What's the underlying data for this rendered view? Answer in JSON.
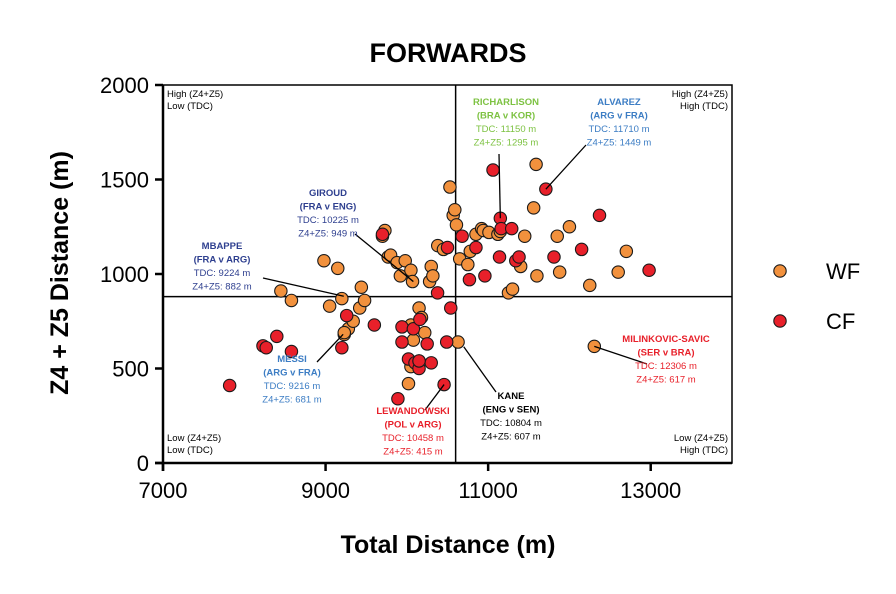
{
  "chart_data": {
    "type": "scatter",
    "title": "FORWARDS",
    "xlabel": "Total Distance (m)",
    "ylabel": "Z4 + Z5 Distance (m)",
    "xlim": [
      7000,
      14000
    ],
    "ylim": [
      0,
      2000
    ],
    "xticks": [
      7000,
      9000,
      11000,
      13000
    ],
    "yticks": [
      0,
      500,
      1000,
      1500,
      2000
    ],
    "reference_lines": {
      "x": 10600,
      "y": 880
    },
    "colors": {
      "WF": "#F2913D",
      "CF": "#E8202A"
    },
    "corner_labels": {
      "top_left": [
        "High (Z4+Z5)",
        "Low (TDC)"
      ],
      "top_right": [
        "High (Z4+Z5)",
        "High (TDC)"
      ],
      "bottom_left": [
        "Low (Z4+Z5)",
        "Low (TDC)"
      ],
      "bottom_right": [
        "Low (Z4+Z5)",
        "High (TDC)"
      ]
    },
    "legend": [
      {
        "name": "WF",
        "color": "#F2913D"
      },
      {
        "name": "CF",
        "color": "#E8202A"
      }
    ],
    "series": [
      {
        "name": "WF",
        "points": [
          [
            8450,
            910
          ],
          [
            8580,
            860
          ],
          [
            8980,
            1070
          ],
          [
            9050,
            830
          ],
          [
            9150,
            1030
          ],
          [
            9200,
            870
          ],
          [
            9280,
            710
          ],
          [
            9340,
            750
          ],
          [
            9420,
            820
          ],
          [
            9440,
            930
          ],
          [
            9480,
            860
          ],
          [
            9700,
            1200
          ],
          [
            9730,
            1230
          ],
          [
            9770,
            1090
          ],
          [
            9800,
            1100
          ],
          [
            9880,
            1060
          ],
          [
            9920,
            990
          ],
          [
            9980,
            1070
          ],
          [
            10050,
            1020
          ],
          [
            10070,
            960
          ],
          [
            10150,
            820
          ],
          [
            10180,
            770
          ],
          [
            10220,
            690
          ],
          [
            10280,
            960
          ],
          [
            10300,
            1040
          ],
          [
            10320,
            990
          ],
          [
            10380,
            1150
          ],
          [
            10450,
            1130
          ],
          [
            10530,
            1460
          ],
          [
            10570,
            1310
          ],
          [
            10590,
            1340
          ],
          [
            10610,
            1260
          ],
          [
            10650,
            1080
          ],
          [
            9230,
            680
          ],
          [
            10050,
            730
          ],
          [
            10050,
            510
          ],
          [
            10020,
            420
          ],
          [
            10080,
            650
          ],
          [
            10750,
            1050
          ],
          [
            10780,
            1120
          ],
          [
            10850,
            1210
          ],
          [
            10920,
            1240
          ],
          [
            10940,
            1230
          ],
          [
            11010,
            1220
          ],
          [
            11120,
            1210
          ],
          [
            11150,
            1225
          ],
          [
            11250,
            900
          ],
          [
            11300,
            920
          ],
          [
            11400,
            1040
          ],
          [
            11450,
            1200
          ],
          [
            11560,
            1350
          ],
          [
            11590,
            1580
          ],
          [
            11600,
            990
          ],
          [
            11850,
            1200
          ],
          [
            11880,
            1010
          ],
          [
            12000,
            1250
          ],
          [
            12250,
            940
          ],
          [
            12600,
            1010
          ],
          [
            12700,
            1120
          ],
          [
            10630,
            640
          ],
          [
            12306,
            617
          ],
          [
            9230,
            690
          ]
        ]
      },
      {
        "name": "CF",
        "points": [
          [
            7820,
            410
          ],
          [
            8230,
            620
          ],
          [
            8270,
            610
          ],
          [
            8400,
            670
          ],
          [
            8580,
            590
          ],
          [
            9200,
            610
          ],
          [
            9260,
            780
          ],
          [
            9600,
            730
          ],
          [
            9700,
            1210
          ],
          [
            9890,
            340
          ],
          [
            9940,
            720
          ],
          [
            9940,
            640
          ],
          [
            10080,
            710
          ],
          [
            10020,
            550
          ],
          [
            10100,
            530
          ],
          [
            10150,
            540
          ],
          [
            10150,
            500
          ],
          [
            10160,
            760
          ],
          [
            10250,
            630
          ],
          [
            10300,
            530
          ],
          [
            10378,
            900
          ],
          [
            10490,
            640
          ],
          [
            10458,
            415
          ],
          [
            10540,
            820
          ],
          [
            10680,
            1200
          ],
          [
            10770,
            970
          ],
          [
            10850,
            1140
          ],
          [
            10960,
            990
          ],
          [
            11060,
            1550
          ],
          [
            11140,
            1090
          ],
          [
            11150,
            1295
          ],
          [
            11160,
            1240
          ],
          [
            11290,
            1240
          ],
          [
            11340,
            1070
          ],
          [
            11380,
            1090
          ],
          [
            11710,
            1449
          ],
          [
            11810,
            1090
          ],
          [
            12150,
            1130
          ],
          [
            12370,
            1310
          ],
          [
            12980,
            1020
          ],
          [
            10500,
            1140
          ],
          [
            10150,
            540
          ]
        ]
      }
    ],
    "annotations": [
      {
        "name": "RICHARLISON",
        "match": "(BRA v KOR)",
        "tdc": "TDC: 11150 m",
        "z": "Z4+Z5: 1295 m",
        "color": "#7DC242",
        "x": 11150,
        "y": 1295
      },
      {
        "name": "ALVAREZ",
        "match": "(ARG v FRA)",
        "tdc": "TDC: 11710 m",
        "z": "Z4+Z5: 1449 m",
        "color": "#3C7DC4",
        "x": 11710,
        "y": 1449
      },
      {
        "name": "GIROUD",
        "match": "(FRA v ENG)",
        "tdc": "TDC: 10225 m",
        "z": "Z4+Z5: 949 m",
        "color": "#2E3F8F",
        "x": 10080,
        "y": 960
      },
      {
        "name": "MBAPPE",
        "match": "(FRA v ARG)",
        "tdc": "TDC: 9224 m",
        "z": "Z4+Z5: 882 m",
        "color": "#2E3F8F",
        "x": 9224,
        "y": 882
      },
      {
        "name": "MESSI",
        "match": "(ARG v FRA)",
        "tdc": "TDC: 9216 m",
        "z": "Z4+Z5: 681 m",
        "color": "#3C7DC4",
        "x": 9216,
        "y": 681
      },
      {
        "name": "LEWANDOWSKI",
        "match": "(POL v ARG)",
        "tdc": "TDC: 10458 m",
        "z": "Z4+Z5: 415 m",
        "color": "#E8202A",
        "x": 10458,
        "y": 415
      },
      {
        "name": "KANE",
        "match": "(ENG v SEN)",
        "tdc": "TDC: 10804 m",
        "z": "Z4+Z5: 607 m",
        "color": "#000000",
        "x": 10700,
        "y": 615
      },
      {
        "name": "MILINKOVIC-SAVIC",
        "match": "(SER v BRA)",
        "tdc": "TDC: 12306 m",
        "z": "Z4+Z5: 617 m",
        "color": "#E8202A",
        "x": 12306,
        "y": 617
      }
    ]
  }
}
